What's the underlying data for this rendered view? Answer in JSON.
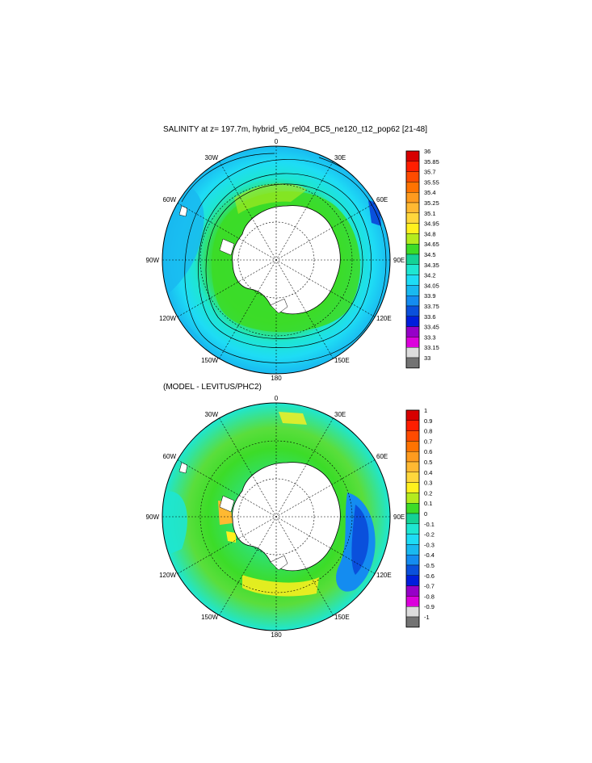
{
  "panels": [
    {
      "title": "SALINITY at z= 197.7m, hybrid_v5_rel04_BC5_ne120_t12_pop62 [21-48]",
      "lon_labels": [
        "0",
        "30E",
        "60E",
        "90E",
        "120E",
        "150E",
        "180",
        "150W",
        "120W",
        "90W",
        "60W",
        "30W"
      ],
      "colorbar": {
        "labels": [
          "36",
          "35.85",
          "35.7",
          "35.55",
          "35.4",
          "35.25",
          "35.1",
          "34.95",
          "34.8",
          "34.65",
          "34.5",
          "34.35",
          "34.2",
          "34.05",
          "33.9",
          "33.75",
          "33.6",
          "33.45",
          "33.3",
          "33.15",
          "33"
        ],
        "colors": [
          "#d70000",
          "#ff1e00",
          "#ff4b00",
          "#ff7300",
          "#ff9b1e",
          "#ffb932",
          "#ffd73c",
          "#fff01e",
          "#b4eb1e",
          "#3cdc28",
          "#14d296",
          "#1ee6d2",
          "#1edcf5",
          "#19b9f0",
          "#148cf0",
          "#0a50dc",
          "#001edc",
          "#9600c8",
          "#dc00dc",
          "#dcdcdc",
          "#737373"
        ]
      }
    },
    {
      "title": "(MODEL - LEVITUS/PHC2)",
      "lon_labels": [
        "0",
        "30E",
        "60E",
        "90E",
        "120E",
        "150E",
        "180",
        "150W",
        "120W",
        "90W",
        "60W",
        "30W"
      ],
      "colorbar": {
        "labels": [
          "1",
          "0.9",
          "0.8",
          "0.7",
          "0.6",
          "0.5",
          "0.4",
          "0.3",
          "0.2",
          "0.1",
          "0",
          "-0.1",
          "-0.2",
          "-0.3",
          "-0.4",
          "-0.5",
          "-0.6",
          "-0.7",
          "-0.8",
          "-0.9",
          "-1"
        ],
        "colors": [
          "#d70000",
          "#ff1e00",
          "#ff4b00",
          "#ff7300",
          "#ff9b1e",
          "#ffb932",
          "#ffd73c",
          "#fff01e",
          "#b4eb1e",
          "#3cdc28",
          "#14d296",
          "#1ee6d2",
          "#1edcf5",
          "#19b9f0",
          "#148cf0",
          "#0a50dc",
          "#001edc",
          "#9600c8",
          "#dc00dc",
          "#dcdcdc",
          "#737373"
        ]
      }
    }
  ]
}
